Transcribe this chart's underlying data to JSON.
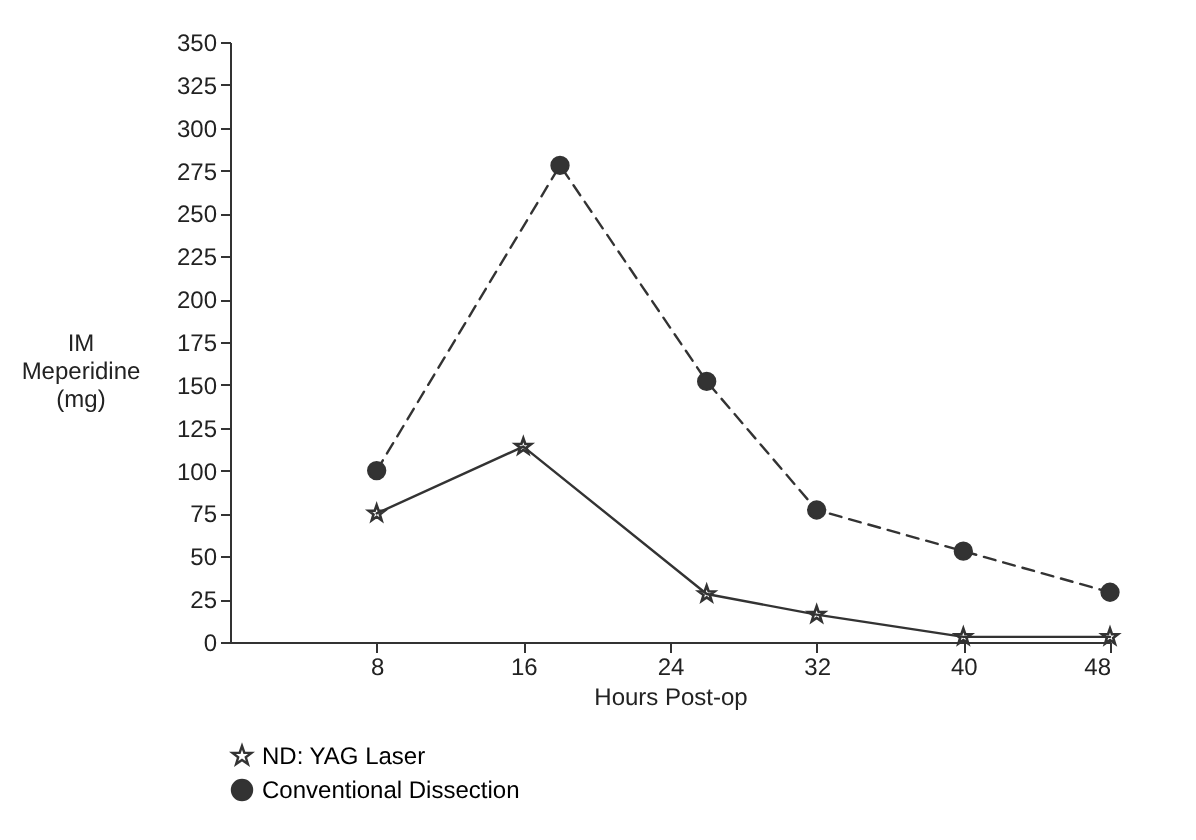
{
  "chart_data": {
    "type": "line",
    "xlabel": "Hours Post-op",
    "ylabel": "IM Meperidine (mg)",
    "xlim": [
      0,
      48
    ],
    "xticks": [
      8,
      16,
      24,
      32,
      40,
      48
    ],
    "ylim": [
      0,
      350
    ],
    "yticks": [
      0,
      25,
      50,
      75,
      100,
      125,
      150,
      175,
      200,
      225,
      250,
      275,
      300,
      325,
      350
    ],
    "grid": false,
    "legend": "bottom",
    "series": [
      {
        "name": "ND: YAG Laser",
        "color": "#333333",
        "marker": "star",
        "line_style": "solid",
        "x": [
          8,
          16,
          26,
          32,
          40,
          48
        ],
        "values": [
          75,
          114,
          28,
          16,
          3,
          3
        ]
      },
      {
        "name": "Conventional Dissection",
        "color": "#333333",
        "marker": "circle",
        "line_style": "dashed",
        "x": [
          8,
          18,
          26,
          32,
          40,
          48
        ],
        "values": [
          100,
          278,
          152,
          77,
          53,
          29
        ]
      }
    ]
  }
}
